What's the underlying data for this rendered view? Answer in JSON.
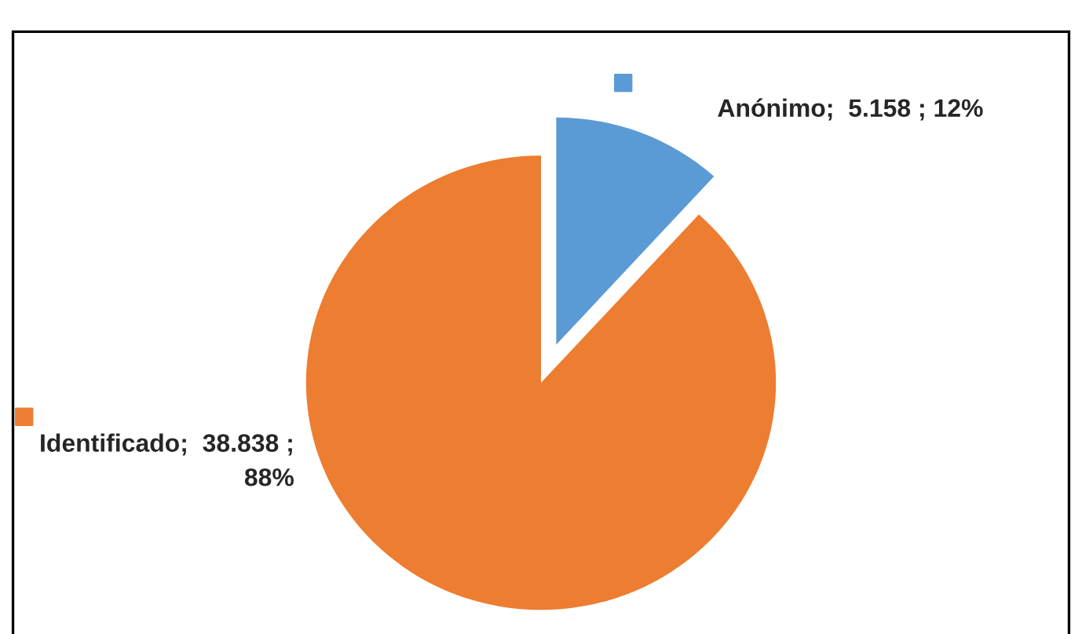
{
  "chart_data": {
    "type": "pie",
    "categories": [
      "Anónimo",
      "Identificado"
    ],
    "values": [
      5158,
      38838
    ],
    "colors": [
      "#5b9bd5",
      "#ed7d31"
    ],
    "value_labels": [
      "5.158 ; 12%",
      "38.838 ;\n88%"
    ]
  }
}
